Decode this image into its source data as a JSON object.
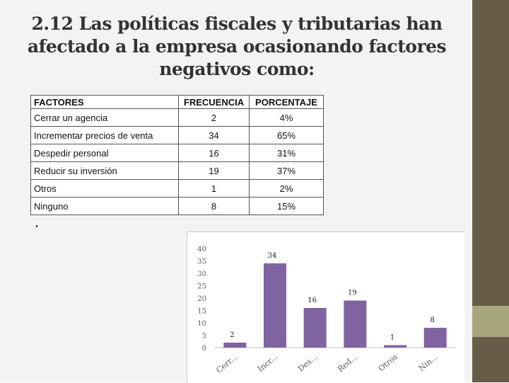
{
  "title": "2.12 Las políticas fiscales y tributarias han afectado a la empresa ocasionando factores negativos como:",
  "table": {
    "headers": [
      "FACTORES",
      "FRECUENCIA",
      "PORCENTAJE"
    ],
    "rows": [
      {
        "factor": "Cerrar un agencia",
        "frecuencia": "2",
        "porcentaje": "4%"
      },
      {
        "factor": "Incrementar precios de venta",
        "frecuencia": "34",
        "porcentaje": "65%"
      },
      {
        "factor": "Despedir personal",
        "frecuencia": "16",
        "porcentaje": "31%"
      },
      {
        "factor": "Reducir su inversión",
        "frecuencia": "19",
        "porcentaje": "37%"
      },
      {
        "factor": "Otros",
        "frecuencia": "1",
        "porcentaje": "2%"
      },
      {
        "factor": "Ninguno",
        "frecuencia": "8",
        "porcentaje": "15%"
      }
    ]
  },
  "colors": {
    "bar": "#8064a2",
    "sidebar": "#675c48",
    "sidebar_accent": "#a8a67e"
  },
  "chart_data": {
    "type": "bar",
    "categories": [
      "Cerr...",
      "Incr...",
      "Des...",
      "Red...",
      "Otros",
      "Nin..."
    ],
    "values": [
      2,
      34,
      16,
      19,
      1,
      8
    ],
    "data_labels": [
      "2",
      "34",
      "16",
      "19",
      "1",
      "8"
    ],
    "y_ticks": [
      "0",
      "5",
      "10",
      "15",
      "20",
      "25",
      "30",
      "35",
      "40"
    ],
    "ylim": [
      0,
      40
    ],
    "title": "",
    "xlabel": "",
    "ylabel": "",
    "legend": "none"
  }
}
